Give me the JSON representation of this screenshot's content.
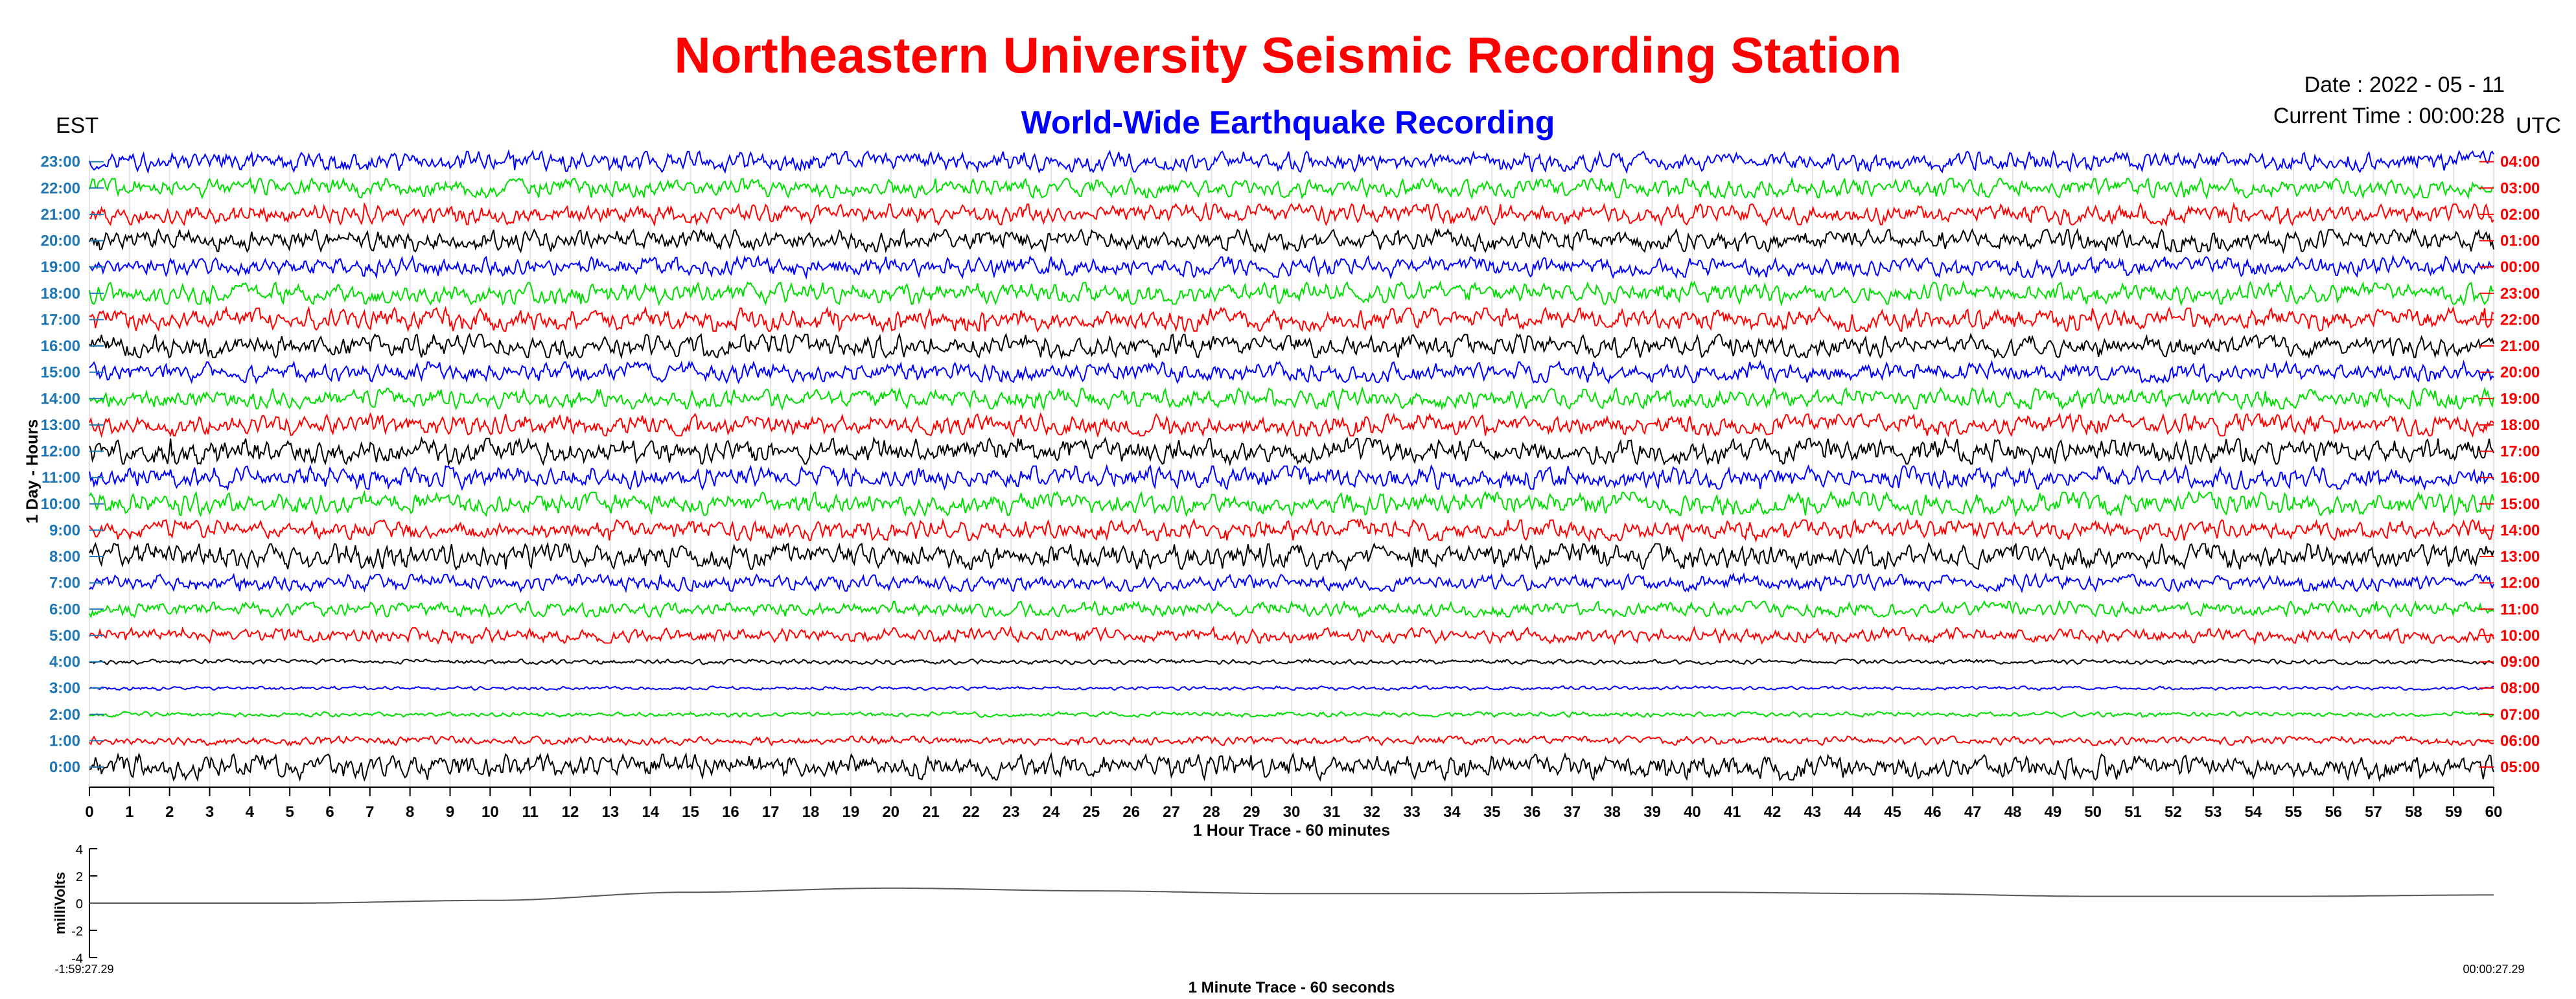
{
  "header": {
    "title": "Northeastern University Seismic Recording Station",
    "subtitle": "World-Wide Earthquake Recording",
    "date": "Date : 2022 - 05 - 11",
    "current_time": "Current Time : 00:00:28",
    "left_timezone": "EST",
    "right_timezone": "UTC"
  },
  "colors": {
    "title": "#ff0000",
    "subtitle": "#0000ff",
    "est_labels": "#1f77b4",
    "utc_labels": "#ff0000",
    "trace_cycle": [
      "#000000",
      "#ff0000",
      "#00dd00",
      "#0000ff"
    ]
  },
  "chart_data": [
    {
      "type": "line",
      "name": "helicorder",
      "ylabel": "1 Day - Hours",
      "xlabel": "1 Hour Trace - 60 minutes",
      "xlim": [
        0,
        60
      ],
      "x_ticks": [
        "0",
        "1",
        "2",
        "3",
        "4",
        "5",
        "6",
        "7",
        "8",
        "9",
        "10",
        "11",
        "12",
        "13",
        "14",
        "15",
        "16",
        "17",
        "18",
        "19",
        "20",
        "21",
        "22",
        "23",
        "24",
        "25",
        "26",
        "27",
        "28",
        "29",
        "30",
        "31",
        "32",
        "33",
        "34",
        "35",
        "36",
        "37",
        "38",
        "39",
        "40",
        "41",
        "42",
        "43",
        "44",
        "45",
        "46",
        "47",
        "48",
        "49",
        "50",
        "51",
        "52",
        "53",
        "54",
        "55",
        "56",
        "57",
        "58",
        "59",
        "60"
      ],
      "est_hours": [
        "0:00",
        "1:00",
        "2:00",
        "3:00",
        "4:00",
        "5:00",
        "6:00",
        "7:00",
        "8:00",
        "9:00",
        "10:00",
        "11:00",
        "12:00",
        "13:00",
        "14:00",
        "15:00",
        "16:00",
        "17:00",
        "18:00",
        "19:00",
        "20:00",
        "21:00",
        "22:00",
        "23:00"
      ],
      "utc_hours": [
        "05:00",
        "06:00",
        "07:00",
        "08:00",
        "09:00",
        "10:00",
        "11:00",
        "12:00",
        "13:00",
        "14:00",
        "15:00",
        "16:00",
        "17:00",
        "18:00",
        "19:00",
        "20:00",
        "21:00",
        "22:00",
        "23:00",
        "00:00",
        "01:00",
        "02:00",
        "03:00",
        "04:00"
      ],
      "trace_colors_bottom_to_top": [
        "black",
        "red",
        "green",
        "blue",
        "black",
        "red",
        "green",
        "blue",
        "black",
        "red",
        "green",
        "blue",
        "black",
        "red",
        "green",
        "blue",
        "black",
        "red",
        "green",
        "blue",
        "black",
        "red",
        "green",
        "blue"
      ],
      "relative_amplitude_bottom_to_top": [
        1.0,
        0.35,
        0.2,
        0.15,
        0.2,
        0.6,
        0.6,
        0.65,
        1.0,
        0.8,
        0.9,
        0.9,
        1.0,
        0.85,
        0.8,
        0.8,
        0.9,
        0.9,
        0.85,
        0.8,
        0.85,
        0.8,
        0.75,
        0.8
      ],
      "vertical_grid": true
    },
    {
      "type": "line",
      "name": "one-minute-trace",
      "ylabel": "milliVolts",
      "xlabel": "1 Minute Trace  - 60 seconds",
      "ylim": [
        -4,
        4
      ],
      "y_ticks": [
        "4",
        "2",
        "0",
        "-2",
        "-4"
      ],
      "x_start_label": "-1:59:27.29",
      "x_end_label": "00:00:27.29",
      "x_seconds": [
        0,
        5,
        10,
        15,
        20,
        25,
        30,
        35,
        40,
        45,
        50,
        55,
        60
      ],
      "values_mv": [
        0.0,
        0.0,
        0.2,
        0.8,
        1.1,
        0.9,
        0.7,
        0.7,
        0.8,
        0.7,
        0.5,
        0.5,
        0.6
      ]
    }
  ]
}
